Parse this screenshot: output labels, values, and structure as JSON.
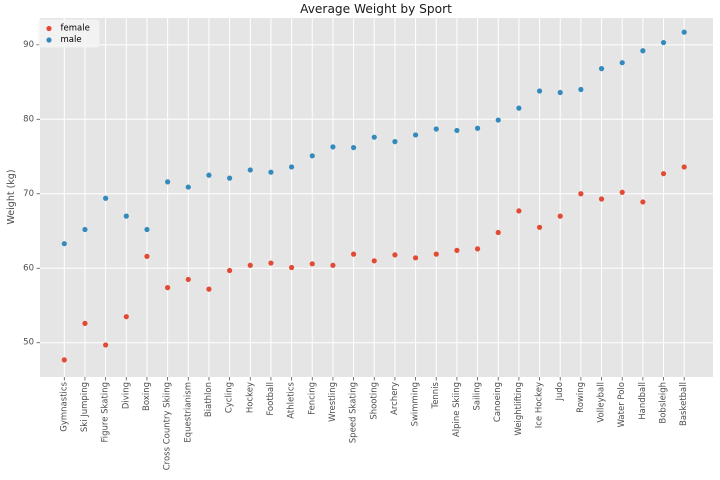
{
  "chart_data": {
    "type": "scatter",
    "title": "Average Weight by Sport",
    "xlabel": "",
    "ylabel": "Weight (kg)",
    "categories": [
      "Gymnastics",
      "Ski Jumping",
      "Figure Skating",
      "Diving",
      "Boxing",
      "Cross Country Skiing",
      "Equestrianism",
      "Biathlon",
      "Cycling",
      "Hockey",
      "Football",
      "Athletics",
      "Fencing",
      "Wrestling",
      "Speed Skating",
      "Shooting",
      "Archery",
      "Swimming",
      "Tennis",
      "Alpine Skiing",
      "Sailing",
      "Canoeing",
      "Weightlifting",
      "Ice Hockey",
      "Judo",
      "Rowing",
      "Volleyball",
      "Water Polo",
      "Handball",
      "Bobsleigh",
      "Basketball"
    ],
    "series": [
      {
        "name": "female",
        "color": "#E24A33",
        "values": [
          47.7,
          52.6,
          49.7,
          53.5,
          61.6,
          57.4,
          58.5,
          57.2,
          59.7,
          60.4,
          60.7,
          60.1,
          60.6,
          60.4,
          61.9,
          61.0,
          61.8,
          61.4,
          61.9,
          62.4,
          62.6,
          64.8,
          67.7,
          65.5,
          67.0,
          70.0,
          69.3,
          70.2,
          68.9,
          72.7,
          73.6
        ]
      },
      {
        "name": "male",
        "color": "#348ABD",
        "values": [
          63.3,
          65.2,
          69.4,
          67.0,
          65.2,
          71.6,
          70.9,
          72.5,
          72.1,
          73.2,
          72.9,
          73.6,
          75.1,
          76.3,
          76.2,
          77.6,
          77.0,
          77.9,
          78.7,
          78.5,
          78.8,
          79.9,
          81.5,
          83.8,
          83.6,
          84.0,
          86.8,
          87.6,
          89.2,
          90.3,
          91.7
        ]
      }
    ],
    "yticks": [
      50,
      60,
      70,
      80,
      90
    ],
    "ylim": [
      45.4,
      93.6
    ],
    "grid": true,
    "legend_position": "upper-left",
    "plot_background": "#E5E5E5",
    "grid_color": "#FFFFFF",
    "tick_color": "#555555",
    "tick_label_color": "#4d4d4d",
    "title_color": "#1a1a1a",
    "legend_face": "#f5f5f5",
    "legend_edge": "#cccccc"
  }
}
